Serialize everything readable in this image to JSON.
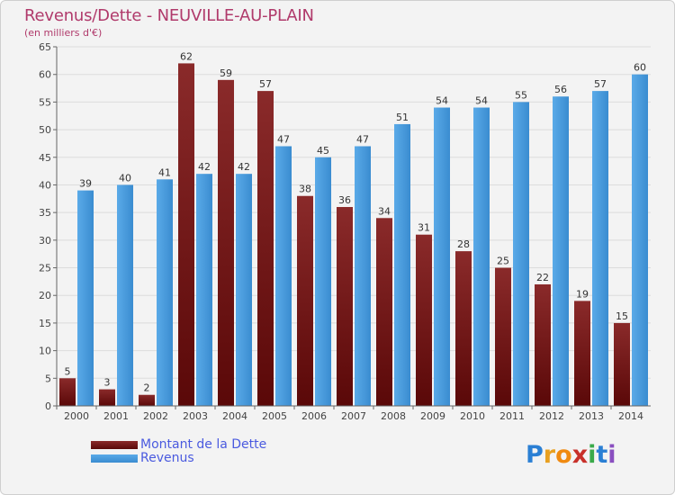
{
  "chart_data": {
    "type": "bar",
    "title": "Revenus/Dette - NEUVILLE-AU-PLAIN",
    "subtitle": "(en milliers d'€)",
    "categories": [
      "2000",
      "2001",
      "2002",
      "2003",
      "2004",
      "2005",
      "2006",
      "2007",
      "2008",
      "2009",
      "2010",
      "2011",
      "2012",
      "2013",
      "2014"
    ],
    "series": [
      {
        "name": "Montant de la Dette",
        "color": "#7a1a1a",
        "values": [
          5,
          3,
          2,
          62,
          59,
          57,
          38,
          36,
          34,
          31,
          28,
          25,
          22,
          19,
          15
        ]
      },
      {
        "name": "Revenus",
        "color": "#4a9fe0",
        "values": [
          39,
          40,
          41,
          42,
          42,
          47,
          45,
          47,
          51,
          54,
          54,
          55,
          56,
          57,
          60
        ]
      }
    ],
    "ylim": [
      0,
      65
    ],
    "yticks": [
      0,
      5,
      10,
      15,
      20,
      25,
      30,
      35,
      40,
      45,
      50,
      55,
      60,
      65
    ],
    "grid": true,
    "legend_position": "bottom-left"
  },
  "logo": {
    "letters": [
      "P",
      "r",
      "o",
      "x",
      "i",
      "t",
      "i"
    ],
    "colors": [
      "#2a7fd4",
      "#e8a020",
      "#f08a10",
      "#c8302a",
      "#3aaa4a",
      "#2a7fd4",
      "#8a4fc0"
    ]
  }
}
